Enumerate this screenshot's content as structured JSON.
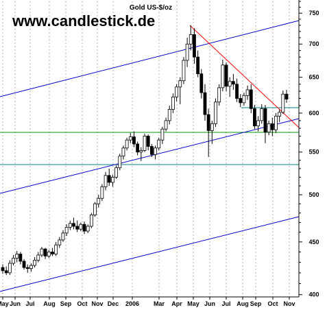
{
  "chart_data": {
    "type": "candlestick",
    "title": "Gold US-$/oz",
    "watermark": "www.candlestick.de",
    "y_axis": {
      "scale": "log",
      "ticks": [
        400,
        450,
        500,
        550,
        600,
        650,
        700,
        750
      ],
      "ylim": [
        398,
        770
      ],
      "position": "right"
    },
    "x_axis": {
      "ticks": [
        "May",
        "Jun",
        "Jul",
        "Aug",
        "Sep",
        "Oct",
        "Nov",
        "Dec",
        "2006",
        "Mar",
        "Apr",
        "May",
        "Jun",
        "Jul",
        "Aug",
        "Sep",
        "Oct",
        "Nov"
      ]
    },
    "grid": "vertical dotted",
    "colors": {
      "up_candle": "#ffffff",
      "down_candle": "#000000",
      "trend_channel": "#0000cc",
      "resistance_line": "#ff0000",
      "support_green": "#009900",
      "support_teal": "#008080"
    },
    "candles": [
      {
        "o": 425,
        "h": 428,
        "l": 419,
        "c": 422
      },
      {
        "o": 422,
        "h": 426,
        "l": 418,
        "c": 420
      },
      {
        "o": 420,
        "h": 432,
        "l": 418,
        "c": 429
      },
      {
        "o": 429,
        "h": 437,
        "l": 427,
        "c": 434
      },
      {
        "o": 434,
        "h": 441,
        "l": 430,
        "c": 438
      },
      {
        "o": 438,
        "h": 440,
        "l": 428,
        "c": 431
      },
      {
        "o": 431,
        "h": 433,
        "l": 423,
        "c": 425
      },
      {
        "o": 425,
        "h": 428,
        "l": 420,
        "c": 424
      },
      {
        "o": 424,
        "h": 429,
        "l": 421,
        "c": 427
      },
      {
        "o": 427,
        "h": 435,
        "l": 425,
        "c": 432
      },
      {
        "o": 432,
        "h": 440,
        "l": 430,
        "c": 437
      },
      {
        "o": 437,
        "h": 445,
        "l": 435,
        "c": 443
      },
      {
        "o": 443,
        "h": 444,
        "l": 433,
        "c": 436
      },
      {
        "o": 436,
        "h": 442,
        "l": 434,
        "c": 440
      },
      {
        "o": 440,
        "h": 444,
        "l": 436,
        "c": 438
      },
      {
        "o": 438,
        "h": 450,
        "l": 436,
        "c": 447
      },
      {
        "o": 447,
        "h": 455,
        "l": 444,
        "c": 452
      },
      {
        "o": 452,
        "h": 462,
        "l": 450,
        "c": 459
      },
      {
        "o": 459,
        "h": 468,
        "l": 456,
        "c": 465
      },
      {
        "o": 465,
        "h": 472,
        "l": 462,
        "c": 469
      },
      {
        "o": 469,
        "h": 475,
        "l": 463,
        "c": 466
      },
      {
        "o": 466,
        "h": 472,
        "l": 460,
        "c": 463
      },
      {
        "o": 463,
        "h": 470,
        "l": 461,
        "c": 468
      },
      {
        "o": 468,
        "h": 471,
        "l": 458,
        "c": 461
      },
      {
        "o": 461,
        "h": 468,
        "l": 459,
        "c": 466
      },
      {
        "o": 466,
        "h": 480,
        "l": 464,
        "c": 478
      },
      {
        "o": 478,
        "h": 492,
        "l": 476,
        "c": 490
      },
      {
        "o": 490,
        "h": 500,
        "l": 486,
        "c": 496
      },
      {
        "o": 496,
        "h": 512,
        "l": 493,
        "c": 509
      },
      {
        "o": 509,
        "h": 526,
        "l": 505,
        "c": 522
      },
      {
        "o": 522,
        "h": 530,
        "l": 510,
        "c": 514
      },
      {
        "o": 514,
        "h": 523,
        "l": 509,
        "c": 520
      },
      {
        "o": 520,
        "h": 534,
        "l": 518,
        "c": 531
      },
      {
        "o": 531,
        "h": 548,
        "l": 528,
        "c": 545
      },
      {
        "o": 545,
        "h": 558,
        "l": 541,
        "c": 555
      },
      {
        "o": 555,
        "h": 568,
        "l": 552,
        "c": 565
      },
      {
        "o": 565,
        "h": 574,
        "l": 561,
        "c": 569
      },
      {
        "o": 569,
        "h": 576,
        "l": 556,
        "c": 560
      },
      {
        "o": 560,
        "h": 563,
        "l": 546,
        "c": 550
      },
      {
        "o": 550,
        "h": 556,
        "l": 539,
        "c": 552
      },
      {
        "o": 552,
        "h": 573,
        "l": 550,
        "c": 570
      },
      {
        "o": 570,
        "h": 572,
        "l": 552,
        "c": 557
      },
      {
        "o": 557,
        "h": 560,
        "l": 544,
        "c": 547
      },
      {
        "o": 547,
        "h": 558,
        "l": 541,
        "c": 555
      },
      {
        "o": 555,
        "h": 568,
        "l": 552,
        "c": 565
      },
      {
        "o": 565,
        "h": 582,
        "l": 560,
        "c": 579
      },
      {
        "o": 579,
        "h": 594,
        "l": 576,
        "c": 590
      },
      {
        "o": 590,
        "h": 610,
        "l": 585,
        "c": 605
      },
      {
        "o": 605,
        "h": 627,
        "l": 600,
        "c": 622
      },
      {
        "o": 622,
        "h": 640,
        "l": 616,
        "c": 636
      },
      {
        "o": 636,
        "h": 650,
        "l": 612,
        "c": 645
      },
      {
        "o": 645,
        "h": 680,
        "l": 640,
        "c": 675
      },
      {
        "o": 675,
        "h": 710,
        "l": 665,
        "c": 700
      },
      {
        "o": 700,
        "h": 730,
        "l": 690,
        "c": 715
      },
      {
        "o": 715,
        "h": 725,
        "l": 670,
        "c": 680
      },
      {
        "o": 680,
        "h": 690,
        "l": 650,
        "c": 655
      },
      {
        "o": 655,
        "h": 662,
        "l": 620,
        "c": 628
      },
      {
        "o": 628,
        "h": 640,
        "l": 590,
        "c": 598
      },
      {
        "o": 598,
        "h": 606,
        "l": 544,
        "c": 577
      },
      {
        "o": 577,
        "h": 590,
        "l": 560,
        "c": 586
      },
      {
        "o": 586,
        "h": 620,
        "l": 582,
        "c": 615
      },
      {
        "o": 615,
        "h": 640,
        "l": 610,
        "c": 635
      },
      {
        "o": 635,
        "h": 676,
        "l": 630,
        "c": 668
      },
      {
        "o": 668,
        "h": 672,
        "l": 630,
        "c": 637
      },
      {
        "o": 637,
        "h": 650,
        "l": 622,
        "c": 644
      },
      {
        "o": 644,
        "h": 655,
        "l": 632,
        "c": 640
      },
      {
        "o": 640,
        "h": 648,
        "l": 615,
        "c": 620
      },
      {
        "o": 620,
        "h": 626,
        "l": 608,
        "c": 614
      },
      {
        "o": 614,
        "h": 628,
        "l": 610,
        "c": 624
      },
      {
        "o": 624,
        "h": 638,
        "l": 618,
        "c": 632
      },
      {
        "o": 632,
        "h": 640,
        "l": 600,
        "c": 606
      },
      {
        "o": 606,
        "h": 611,
        "l": 579,
        "c": 583
      },
      {
        "o": 583,
        "h": 596,
        "l": 576,
        "c": 590
      },
      {
        "o": 590,
        "h": 612,
        "l": 586,
        "c": 606
      },
      {
        "o": 606,
        "h": 611,
        "l": 561,
        "c": 575
      },
      {
        "o": 575,
        "h": 590,
        "l": 571,
        "c": 586
      },
      {
        "o": 586,
        "h": 594,
        "l": 570,
        "c": 578
      },
      {
        "o": 578,
        "h": 600,
        "l": 574,
        "c": 596
      },
      {
        "o": 596,
        "h": 605,
        "l": 588,
        "c": 601
      },
      {
        "o": 601,
        "h": 631,
        "l": 599,
        "c": 626
      },
      {
        "o": 626,
        "h": 632,
        "l": 614,
        "c": 619
      }
    ]
  }
}
